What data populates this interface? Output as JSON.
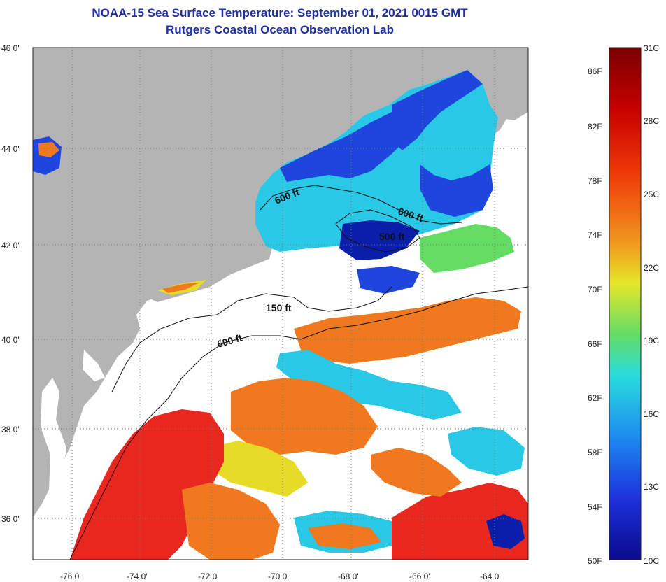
{
  "header": {
    "title": "NOAA-15 Sea Surface Temperature:  September 01, 2021 0015 GMT",
    "subtitle": "Rutgers Coastal Ocean Observation Lab"
  },
  "map": {
    "lat_ticks": [
      "46 0'",
      "44 0'",
      "42 0'",
      "40 0'",
      "38 0'",
      "36 0'"
    ],
    "lon_ticks": [
      "-76 0'",
      "-74 0'",
      "-72 0'",
      "-70 0'",
      "-68 0'",
      "-66 0'",
      "-64 0'"
    ],
    "contours": [
      "600 ft",
      "600 ft",
      "500 ft",
      "150 ft",
      "600 ft"
    ],
    "colors": {
      "land": "#b4b4b4",
      "cloud": "#ffffff",
      "warm": "#e8281e",
      "orange": "#f0781e",
      "yellow": "#e6dc28",
      "cyan": "#28c8e6",
      "blue": "#1e46dc",
      "deep_blue": "#0a1eaa"
    }
  },
  "colorbar": {
    "fahrenheit": [
      "86F",
      "82F",
      "78F",
      "74F",
      "70F",
      "66F",
      "62F",
      "58F",
      "54F",
      "50F"
    ],
    "celsius": [
      "31C",
      "28C",
      "25C",
      "22C",
      "19C",
      "16C",
      "13C",
      "10C"
    ],
    "stops": [
      "#7a0000",
      "#c80000",
      "#f03c0a",
      "#f0961e",
      "#e6e628",
      "#64dc64",
      "#28dcdc",
      "#1e8cf0",
      "#1e32dc",
      "#0a0a8c"
    ]
  }
}
